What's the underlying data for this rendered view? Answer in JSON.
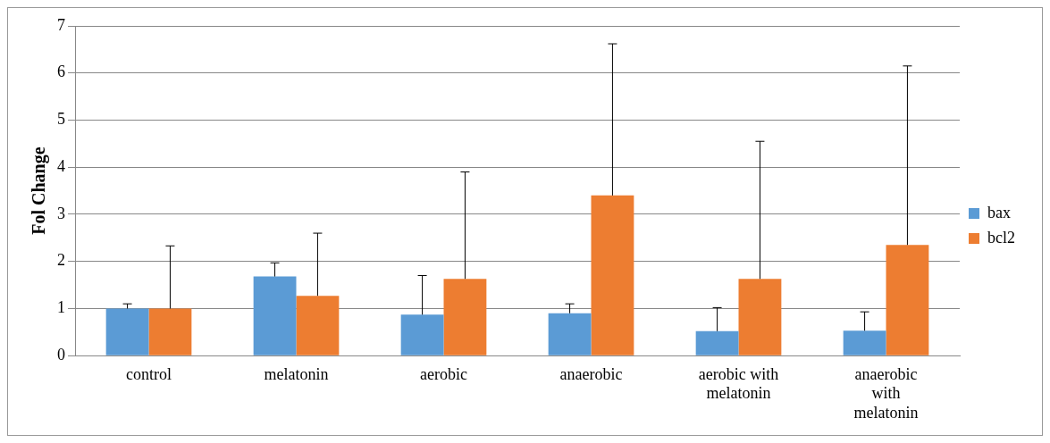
{
  "chart_data": {
    "type": "bar",
    "ylabel": "Fol Change",
    "categories": [
      "control",
      "melatonin",
      "aerobic",
      "anaerobic",
      "aerobic with melatonin",
      "anaerobic with melatonin"
    ],
    "series": [
      {
        "name": "bax",
        "color": "#5b9bd5",
        "values": [
          1.0,
          1.68,
          0.87,
          0.9,
          0.52,
          0.53
        ],
        "errors": [
          [
            1.0,
            1.1
          ],
          [
            1.68,
            1.97
          ],
          [
            0.87,
            1.7
          ],
          [
            0.9,
            1.1
          ],
          [
            0.52,
            1.02
          ],
          [
            0.53,
            0.93
          ]
        ]
      },
      {
        "name": "bcl2",
        "color": "#ed7d31",
        "values": [
          1.0,
          1.27,
          1.63,
          3.4,
          1.63,
          2.35
        ],
        "errors": [
          [
            1.0,
            2.33
          ],
          [
            1.27,
            2.6
          ],
          [
            1.63,
            3.9
          ],
          [
            3.4,
            6.62
          ],
          [
            1.63,
            4.55
          ],
          [
            2.35,
            6.15
          ]
        ]
      }
    ],
    "ylim": [
      0,
      7
    ],
    "yticks": [
      0,
      1,
      2,
      3,
      4,
      5,
      6,
      7
    ],
    "grid": "y",
    "legend": "right"
  }
}
